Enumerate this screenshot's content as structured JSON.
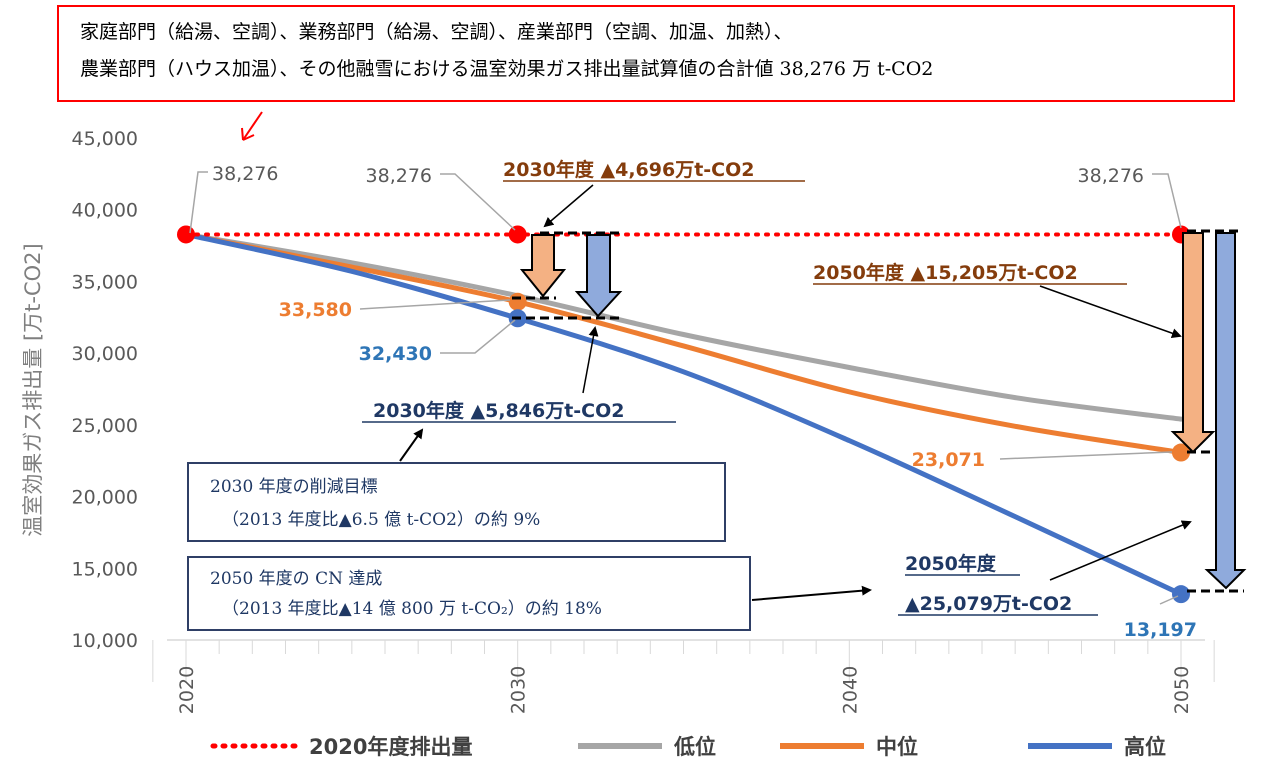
{
  "header": {
    "line1": "家庭部門（給湯、空調）、業務部門（給湯、空調）、産業部門（空調、加温、加熱）、",
    "line2": "農業部門（ハウス加温）、その他融雪における温室効果ガス排出量試算値の合計値 38,276 万 t-CO2"
  },
  "annotations": {
    "a2030_top": "2030年度 ▲4,696万t-CO2",
    "a2030_bottom": "2030年度 ▲5,846万t-CO2",
    "a2050_mid": "2050年度 ▲15,205万t-CO2",
    "a2050_high_1": "2050年度",
    "a2050_high_2": "▲25,079万t-CO2",
    "box1_line1": "2030 年度の削減目標",
    "box1_line2": "（2013 年度比▲6.5 億 t-CO2）の約 9%",
    "box2_line1": "2050 年度の CN 達成",
    "box2_line2": "（2013 年度比▲14 億 800 万 t-CO₂）の約 18%"
  },
  "data_labels": {
    "base_2020": "38,276",
    "base_2030": "38,276",
    "base_2050": "38,276",
    "mid_2030": "33,580",
    "high_2030": "32,430",
    "mid_2050": "23,071",
    "high_2050": "13,197"
  },
  "colors": {
    "baseline": "#ff0000",
    "low": "#a6a6a6",
    "mid": "#ed7d31",
    "high": "#4472c4",
    "annotation_brown": "#843c0c",
    "annotation_navy": "#1f3864",
    "arrow_orange_fill": "#f4b183",
    "arrow_blue_fill": "#8faadc",
    "header_border": "#ff0000",
    "box_border": "#2f3f66",
    "data_label_blue": "#2e75b6"
  },
  "chart_data": {
    "type": "line",
    "ylabel": "温室効果ガス排出量 [万t-CO2]",
    "xlabel": "",
    "xlim": [
      2019,
      2051
    ],
    "ylim": [
      10000,
      45000
    ],
    "x_ticks": [
      "2020",
      "2030",
      "2040",
      "2050"
    ],
    "y_ticks": [
      "10,000",
      "15,000",
      "20,000",
      "25,000",
      "30,000",
      "35,000",
      "40,000",
      "45,000"
    ],
    "grid": "none",
    "legend_position": "bottom",
    "series": [
      {
        "name": "2020年度排出量",
        "style": "dotted",
        "x": [
          2020,
          2030,
          2050
        ],
        "y": [
          38276,
          38276,
          38276
        ]
      },
      {
        "name": "低位",
        "x": [
          2020,
          2025,
          2030,
          2035,
          2040,
          2045,
          2050
        ],
        "y": [
          38276,
          36300,
          34000,
          31300,
          29000,
          26900,
          25400
        ]
      },
      {
        "name": "中位",
        "x": [
          2020,
          2025,
          2030,
          2035,
          2040,
          2045,
          2050
        ],
        "y": [
          38276,
          36000,
          33580,
          30500,
          27300,
          24900,
          23071
        ]
      },
      {
        "name": "高位",
        "x": [
          2020,
          2025,
          2030,
          2035,
          2040,
          2045,
          2050
        ],
        "y": [
          38276,
          35700,
          32430,
          28700,
          23900,
          18600,
          13197
        ]
      }
    ]
  }
}
